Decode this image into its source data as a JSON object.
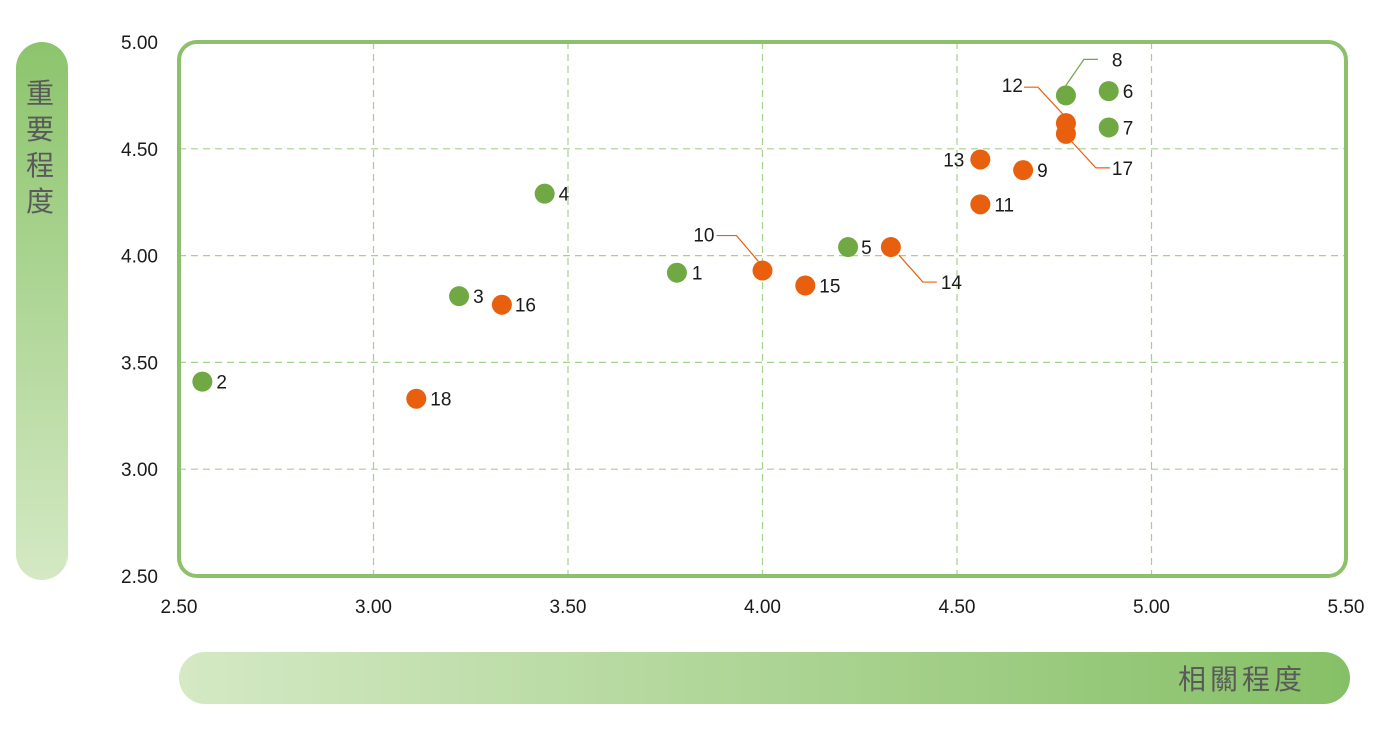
{
  "chart_data": {
    "type": "scatter",
    "title": "",
    "xlabel": "相關程度",
    "ylabel": "重要程度",
    "xlim": [
      2.5,
      5.5
    ],
    "ylim": [
      2.5,
      5.0
    ],
    "x_ticks": [
      "2.50",
      "3.00",
      "3.50",
      "4.00",
      "4.50",
      "5.00",
      "5.50"
    ],
    "y_ticks": [
      "2.50",
      "3.00",
      "3.50",
      "4.00",
      "4.50",
      "5.00"
    ],
    "grid": true,
    "colors": {
      "green": "#70a844",
      "orange": "#e8600e",
      "frame": "#8cc06a",
      "grid": "#a9cf8c",
      "leader_green": "#70a844",
      "leader_orange": "#e8600e"
    },
    "points": [
      {
        "label": "1",
        "x": 3.78,
        "y": 3.92,
        "color": "green"
      },
      {
        "label": "2",
        "x": 2.56,
        "y": 3.41,
        "color": "green"
      },
      {
        "label": "3",
        "x": 3.22,
        "y": 3.81,
        "color": "green"
      },
      {
        "label": "4",
        "x": 3.44,
        "y": 4.29,
        "color": "green"
      },
      {
        "label": "5",
        "x": 4.22,
        "y": 4.04,
        "color": "green"
      },
      {
        "label": "6",
        "x": 4.89,
        "y": 4.77,
        "color": "green"
      },
      {
        "label": "7",
        "x": 4.89,
        "y": 4.6,
        "color": "green"
      },
      {
        "label": "8",
        "x": 4.78,
        "y": 4.75,
        "color": "green"
      },
      {
        "label": "9",
        "x": 4.67,
        "y": 4.4,
        "color": "orange"
      },
      {
        "label": "10",
        "x": 4.0,
        "y": 3.93,
        "color": "orange"
      },
      {
        "label": "11",
        "x": 4.56,
        "y": 4.24,
        "color": "orange"
      },
      {
        "label": "12",
        "x": 4.78,
        "y": 4.62,
        "color": "orange"
      },
      {
        "label": "13",
        "x": 4.56,
        "y": 4.45,
        "color": "orange"
      },
      {
        "label": "14",
        "x": 4.33,
        "y": 4.04,
        "color": "orange"
      },
      {
        "label": "15",
        "x": 4.11,
        "y": 3.86,
        "color": "orange"
      },
      {
        "label": "16",
        "x": 3.33,
        "y": 3.77,
        "color": "orange"
      },
      {
        "label": "17",
        "x": 4.78,
        "y": 4.57,
        "color": "orange"
      },
      {
        "label": "18",
        "x": 3.11,
        "y": 3.33,
        "color": "orange"
      }
    ]
  }
}
